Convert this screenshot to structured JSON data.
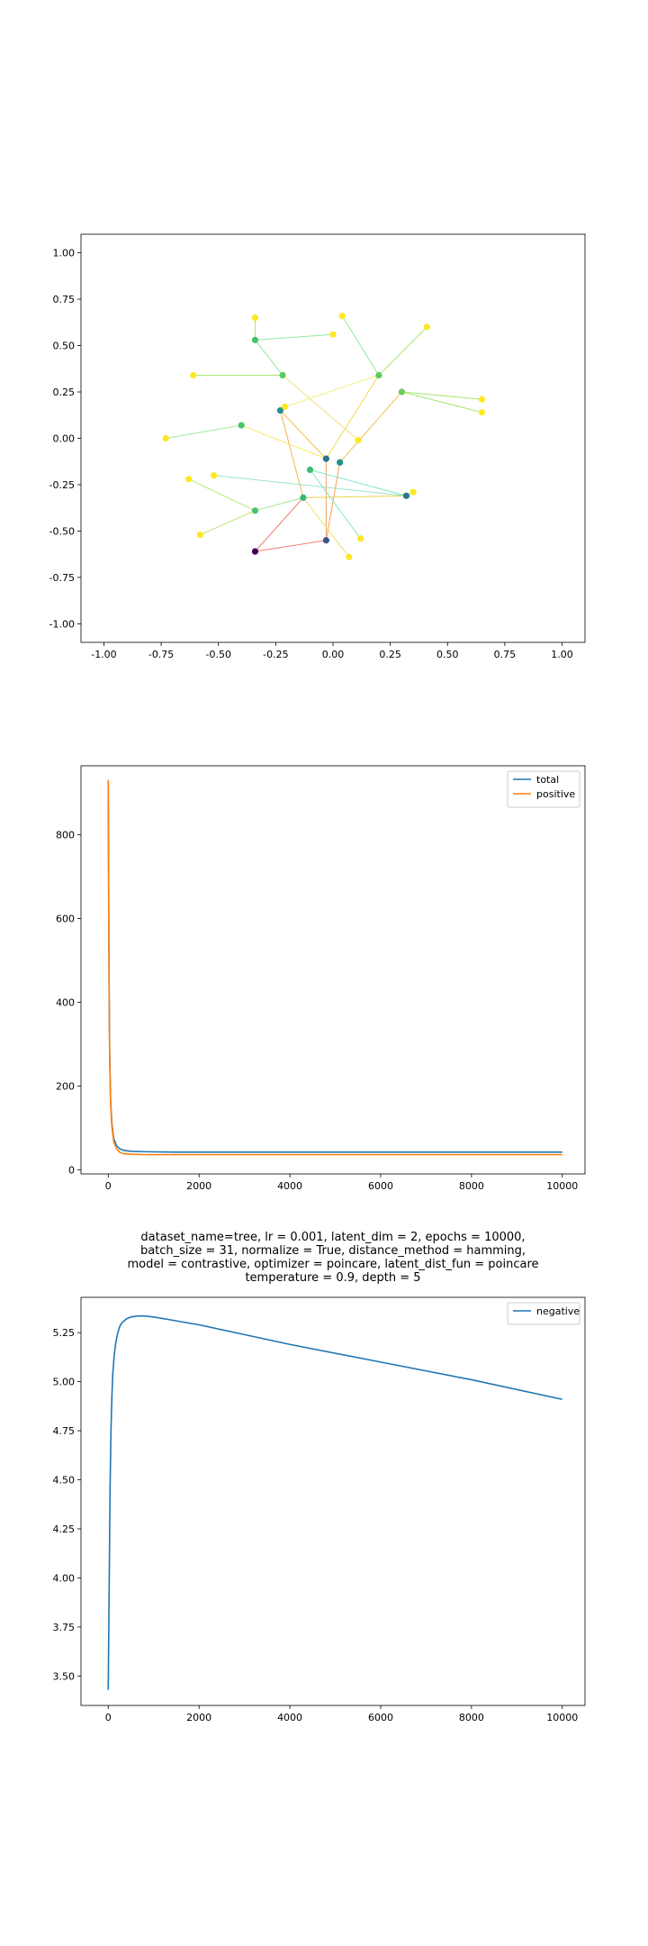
{
  "chart_data": [
    {
      "type": "scatter",
      "xlim": [
        -1.1,
        1.1
      ],
      "ylim": [
        -1.1,
        1.1
      ],
      "xticks": [
        "-1.00",
        "-0.75",
        "-0.50",
        "-0.25",
        "0.00",
        "0.25",
        "0.50",
        "0.75",
        "1.00"
      ],
      "yticks": [
        "1.00",
        "0.75",
        "0.50",
        "0.25",
        "0.00",
        "-0.25",
        "-0.50",
        "-0.75",
        "-1.00"
      ],
      "points": [
        {
          "x": -0.34,
          "y": -0.61,
          "color": "#440154"
        },
        {
          "x": -0.03,
          "y": -0.55,
          "color": "#3b528b"
        },
        {
          "x": -0.03,
          "y": -0.11,
          "color": "#2c728e"
        },
        {
          "x": 0.03,
          "y": -0.13,
          "color": "#21908c"
        },
        {
          "x": -0.23,
          "y": 0.15,
          "color": "#21918c"
        },
        {
          "x": 0.32,
          "y": -0.31,
          "color": "#2a788e"
        },
        {
          "x": -0.13,
          "y": -0.32,
          "color": "#35b779"
        },
        {
          "x": -0.1,
          "y": -0.17,
          "color": "#3fbc73"
        },
        {
          "x": -0.34,
          "y": -0.39,
          "color": "#4ac16d"
        },
        {
          "x": -0.4,
          "y": 0.07,
          "color": "#4ac16d"
        },
        {
          "x": -0.34,
          "y": 0.53,
          "color": "#4ac16d"
        },
        {
          "x": -0.22,
          "y": 0.34,
          "color": "#5ec962"
        },
        {
          "x": 0.2,
          "y": 0.34,
          "color": "#5ec962"
        },
        {
          "x": 0.3,
          "y": 0.25,
          "color": "#6ccd5a"
        },
        {
          "x": -0.34,
          "y": 0.65,
          "color": "#fde725"
        },
        {
          "x": 0.04,
          "y": 0.66,
          "color": "#fde725"
        },
        {
          "x": 0.41,
          "y": 0.6,
          "color": "#fde725"
        },
        {
          "x": 0.0,
          "y": 0.56,
          "color": "#fde725"
        },
        {
          "x": -0.61,
          "y": 0.34,
          "color": "#fde725"
        },
        {
          "x": -0.21,
          "y": 0.17,
          "color": "#fde725"
        },
        {
          "x": 0.65,
          "y": 0.21,
          "color": "#fde725"
        },
        {
          "x": 0.65,
          "y": 0.14,
          "color": "#fde725"
        },
        {
          "x": -0.73,
          "y": 0.0,
          "color": "#fde725"
        },
        {
          "x": 0.11,
          "y": -0.01,
          "color": "#fde725"
        },
        {
          "x": -0.63,
          "y": -0.22,
          "color": "#fde725"
        },
        {
          "x": -0.52,
          "y": -0.2,
          "color": "#fde725"
        },
        {
          "x": 0.35,
          "y": -0.29,
          "color": "#fde725"
        },
        {
          "x": -0.58,
          "y": -0.52,
          "color": "#fde725"
        },
        {
          "x": 0.12,
          "y": -0.54,
          "color": "#fde725"
        },
        {
          "x": 0.07,
          "y": -0.64,
          "color": "#fde725"
        }
      ],
      "edges": [
        {
          "from": 0,
          "to": 1,
          "color": "#f08070"
        },
        {
          "from": 0,
          "to": 6,
          "color": "#f08070"
        },
        {
          "from": 1,
          "to": 2,
          "color": "#f5a05c"
        },
        {
          "from": 1,
          "to": 3,
          "color": "#f5a05c"
        },
        {
          "from": 2,
          "to": 4,
          "color": "#f6c04a"
        },
        {
          "from": 2,
          "to": 12,
          "color": "#f6d848"
        },
        {
          "from": 3,
          "to": 13,
          "color": "#f2c24a"
        },
        {
          "from": 4,
          "to": 6,
          "color": "#f6b34e"
        },
        {
          "from": 2,
          "to": 9,
          "color": "#f8e86a"
        },
        {
          "from": 6,
          "to": 5,
          "color": "#e8d44a"
        },
        {
          "from": 6,
          "to": 8,
          "color": "#a8e08a"
        },
        {
          "from": 7,
          "to": 5,
          "color": "#7fe8c8"
        },
        {
          "from": 7,
          "to": 28,
          "color": "#7fe8c8"
        },
        {
          "from": 5,
          "to": 26,
          "color": "#9fe09a"
        },
        {
          "from": 5,
          "to": 25,
          "color": "#9fe0c8"
        },
        {
          "from": 9,
          "to": 22,
          "color": "#9fe89a"
        },
        {
          "from": 8,
          "to": 24,
          "color": "#b8e870"
        },
        {
          "from": 8,
          "to": 27,
          "color": "#b8e870"
        },
        {
          "from": 10,
          "to": 14,
          "color": "#a8e870"
        },
        {
          "from": 10,
          "to": 17,
          "color": "#8fe8a0"
        },
        {
          "from": 10,
          "to": 11,
          "color": "#8fe8a0"
        },
        {
          "from": 11,
          "to": 23,
          "color": "#f6e080"
        },
        {
          "from": 11,
          "to": 18,
          "color": "#a8e870"
        },
        {
          "from": 12,
          "to": 15,
          "color": "#8fe8a0"
        },
        {
          "from": 12,
          "to": 16,
          "color": "#a8e870"
        },
        {
          "from": 12,
          "to": 19,
          "color": "#f0f080"
        },
        {
          "from": 13,
          "to": 20,
          "color": "#a8e870"
        },
        {
          "from": 13,
          "to": 21,
          "color": "#a8e870"
        },
        {
          "from": 6,
          "to": 29,
          "color": "#f0e070"
        }
      ]
    },
    {
      "type": "line",
      "xlim": [
        -600,
        10500
      ],
      "ylim": [
        -10,
        965
      ],
      "xticks": [
        0,
        2000,
        4000,
        6000,
        8000,
        10000
      ],
      "yticks": [
        0,
        200,
        400,
        600,
        800
      ],
      "legend": "top-right",
      "series": [
        {
          "name": "total",
          "color": "#1f77b4",
          "x": [
            0,
            10,
            20,
            30,
            50,
            80,
            120,
            180,
            250,
            350,
            500,
            800,
            1500,
            3000,
            6000,
            10000
          ],
          "y": [
            930,
            640,
            430,
            290,
            170,
            110,
            75,
            58,
            50,
            46,
            44,
            43,
            42,
            42,
            42,
            42
          ]
        },
        {
          "name": "positive",
          "color": "#ff7f0e",
          "x": [
            0,
            10,
            20,
            30,
            50,
            80,
            120,
            180,
            250,
            350,
            500,
            800,
            1500,
            3000,
            6000,
            10000
          ],
          "y": [
            930,
            635,
            425,
            284,
            163,
            103,
            68,
            50,
            42,
            38,
            37,
            36,
            36,
            36,
            36,
            36
          ]
        }
      ]
    },
    {
      "type": "line",
      "title": "dataset_name=tree, lr = 0.001, latent_dim = 2, epochs = 10000,\nbatch_size = 31, normalize = True, distance_method = hamming,\nmodel = contrastive, optimizer = poincare, latent_dist_fun = poincare\ntemperature = 0.9, depth = 5",
      "xlim": [
        -600,
        10500
      ],
      "ylim": [
        3.35,
        5.43
      ],
      "xticks": [
        0,
        2000,
        4000,
        6000,
        8000,
        10000
      ],
      "yticks": [
        3.5,
        3.75,
        4.0,
        4.25,
        4.5,
        4.75,
        5.0,
        5.25
      ],
      "legend": "top-right",
      "series": [
        {
          "name": "negative",
          "color": "#1f77b4",
          "x": [
            0,
            20,
            40,
            60,
            80,
            100,
            130,
            160,
            200,
            250,
            300,
            400,
            500,
            650,
            800,
            1000,
            1500,
            2000,
            3000,
            4000,
            6000,
            8000,
            10000
          ],
          "y": [
            3.43,
            3.95,
            4.45,
            4.75,
            4.92,
            5.04,
            5.13,
            5.19,
            5.24,
            5.28,
            5.3,
            5.32,
            5.33,
            5.335,
            5.335,
            5.33,
            5.31,
            5.29,
            5.24,
            5.19,
            5.1,
            5.01,
            4.91
          ]
        }
      ]
    }
  ]
}
